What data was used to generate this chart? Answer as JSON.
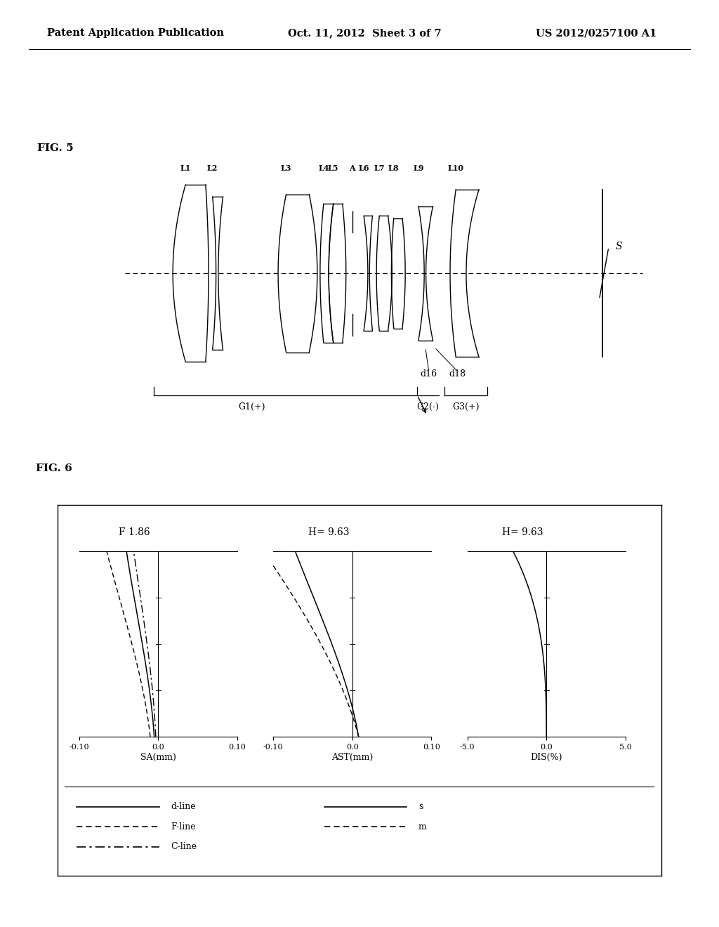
{
  "header_left": "Patent Application Publication",
  "header_center": "Oct. 11, 2012  Sheet 3 of 7",
  "header_right": "US 2012/0257100 A1",
  "fig5_label": "FIG. 5",
  "fig6_label": "FIG. 6",
  "lens_labels": [
    "L1",
    "L2",
    "L3",
    "L4",
    "L5",
    "A",
    "L6",
    "L7",
    "L8",
    "L9",
    "L10"
  ],
  "group_labels": [
    "G1(+)",
    "G2(-)",
    "G3(+)"
  ],
  "d_labels": [
    "d16",
    "d18"
  ],
  "sensor_label": "S",
  "sa_title": "F 1.86",
  "ast_title": "H= 9.63",
  "dis_title": "H= 9.63",
  "sa_xlabel": "SA(mm)",
  "ast_xlabel": "AST(mm)",
  "dis_xlabel": "DIS(%)",
  "bg_color": "#ffffff"
}
